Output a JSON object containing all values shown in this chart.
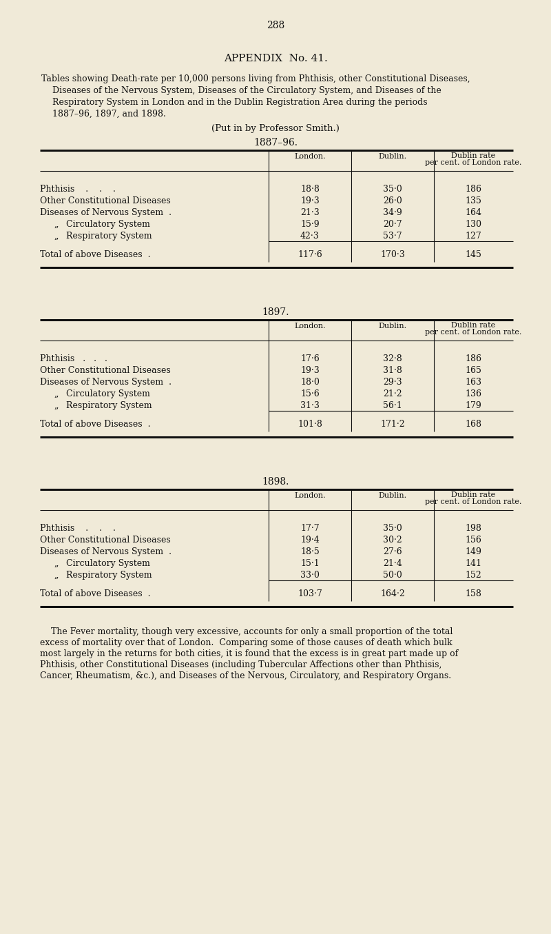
{
  "page_number": "288",
  "appendix_title": "APPENDIX  No. 41.",
  "intro_lines": [
    "Tables showing Death-rate per 10,000 persons living from Phthisis, other Constitutional Diseases,",
    "    Diseases of the Nervous System, Diseases of the Circulatory System, and Diseases of the",
    "    Respiratory System in London and in the Dublin Registration Area during the periods",
    "    1887–96, 1897, and 1898."
  ],
  "professor_note": "(Put in by Professor Smith.)",
  "background_color": "#f0ead8",
  "text_color": "#111111",
  "tables": [
    {
      "year": "1887–96.",
      "rows": [
        [
          "Phthisis    .    .    .",
          "18·8",
          "35·0",
          "186"
        ],
        [
          "Other Constitutional Diseases",
          "19·3",
          "26·0",
          "135"
        ],
        [
          "Diseases of Nervous System  .",
          "21·3",
          "34·9",
          "164"
        ],
        [
          "„    Circulatory System",
          "15·9",
          "20·7",
          "130"
        ],
        [
          "„    Respiratory System",
          "42·3",
          "53·7",
          "127"
        ],
        [
          "Total of above Diseases  .",
          "117·6",
          "170·3",
          "145"
        ]
      ]
    },
    {
      "year": "1897.",
      "rows": [
        [
          "Phthisis   .   .   .",
          "17·6",
          "32·8",
          "186"
        ],
        [
          "Other Constitutional Diseases",
          "19·3",
          "31·8",
          "165"
        ],
        [
          "Diseases of Nervous System  .",
          "18·0",
          "29·3",
          "163"
        ],
        [
          "„    Circulatory System",
          "15·6",
          "21·2",
          "136"
        ],
        [
          "„    Respiratory System",
          "31·3",
          "56·1",
          "179"
        ],
        [
          "Total of above Diseases  .",
          "101·8",
          "171·2",
          "168"
        ]
      ]
    },
    {
      "year": "1898.",
      "rows": [
        [
          "Phthisis    .    .    .",
          "17·7",
          "35·0",
          "198"
        ],
        [
          "Other Constitutional Diseases",
          "19·4",
          "30·2",
          "156"
        ],
        [
          "Diseases of Nervous System  .",
          "18·5",
          "27·6",
          "149"
        ],
        [
          "„    Circulatory System",
          "15·1",
          "21·4",
          "141"
        ],
        [
          "„    Respiratory System",
          "33·0",
          "50·0",
          "152"
        ],
        [
          "Total of above Diseases  .",
          "103·7",
          "164·2",
          "158"
        ]
      ]
    }
  ],
  "footer_lines": [
    "    The Fever mortality, though very excessive, accounts for only a small proportion of the total",
    "excess of mortality over that of London.  Comparing some of those causes of death which bulk",
    "most largely in the returns for both cities, it is found that the excess is in great part made up of",
    "Phthisis, other Constitutional Diseases (including Tubercular Affections other than Phthisis,",
    "Cancer, Rheumatism, &c.), and Diseases of the Nervous, Circulatory, and Respiratory Organs."
  ]
}
